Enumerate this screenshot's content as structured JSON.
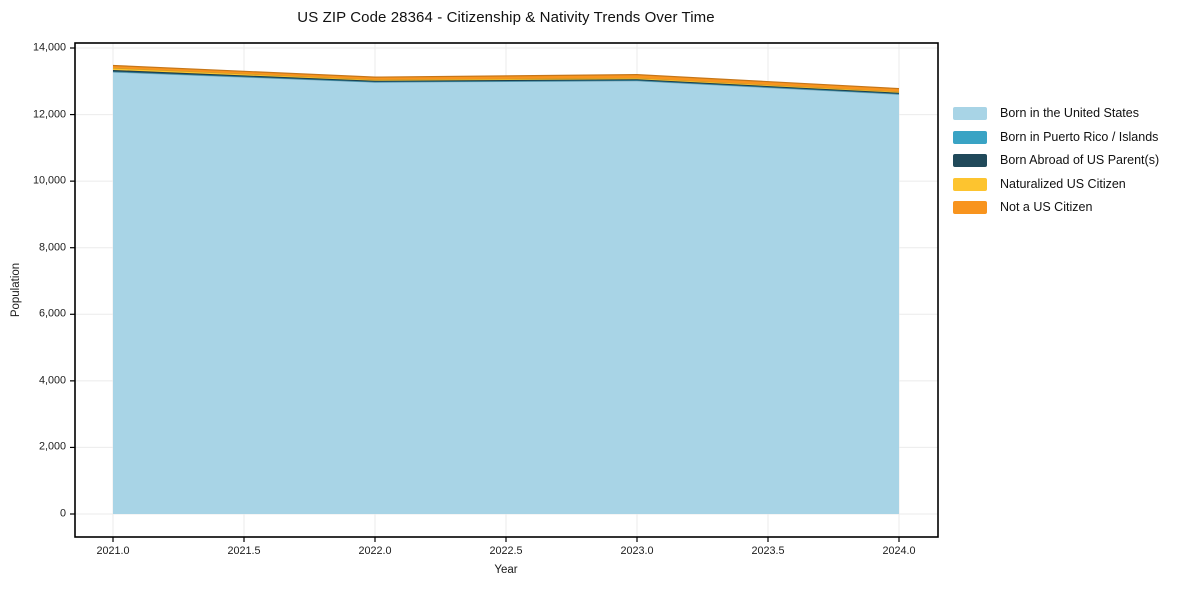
{
  "title": "US ZIP Code 28364 - Citizenship & Nativity Trends Over Time",
  "chart_data": {
    "type": "area",
    "stacked": true,
    "title": "US ZIP Code 28364 - Citizenship & Nativity Trends Over Time",
    "xlabel": "Year",
    "ylabel": "Population",
    "x": [
      2021,
      2022,
      2023,
      2024
    ],
    "series": [
      {
        "name": "Born in the United States",
        "color": "#a8d4e6",
        "values": [
          13280,
          12975,
          13015,
          12610
        ]
      },
      {
        "name": "Born in Puerto Rico / Islands",
        "color": "#39a3c4",
        "values": [
          15,
          10,
          15,
          15
        ]
      },
      {
        "name": "Born Abroad of US Parent(s)",
        "color": "#20495a",
        "values": [
          45,
          30,
          30,
          30
        ]
      },
      {
        "name": "Naturalized US Citizen",
        "color": "#fdc42f",
        "values": [
          60,
          35,
          40,
          35
        ]
      },
      {
        "name": "Not a US Citizen",
        "color": "#f8941e",
        "values": [
          75,
          75,
          100,
          90
        ]
      }
    ],
    "xticks": [
      2021.0,
      2021.5,
      2022.0,
      2022.5,
      2023.0,
      2023.5,
      2024.0
    ],
    "xtick_labels": [
      "2021.0",
      "2021.5",
      "2022.0",
      "2022.5",
      "2023.0",
      "2023.5",
      "2024.0"
    ],
    "yticks": [
      0,
      2000,
      4000,
      6000,
      8000,
      10000,
      12000,
      14000
    ],
    "ytick_labels": [
      "0",
      "2,000",
      "4,000",
      "6,000",
      "8,000",
      "10,000",
      "12,000",
      "14,000"
    ],
    "ylim": [
      0,
      14000
    ],
    "xlim": [
      2021,
      2024
    ],
    "grid": true,
    "legend_position": "right",
    "grid_color": "#ebebeb",
    "spine_color": "#000000"
  }
}
